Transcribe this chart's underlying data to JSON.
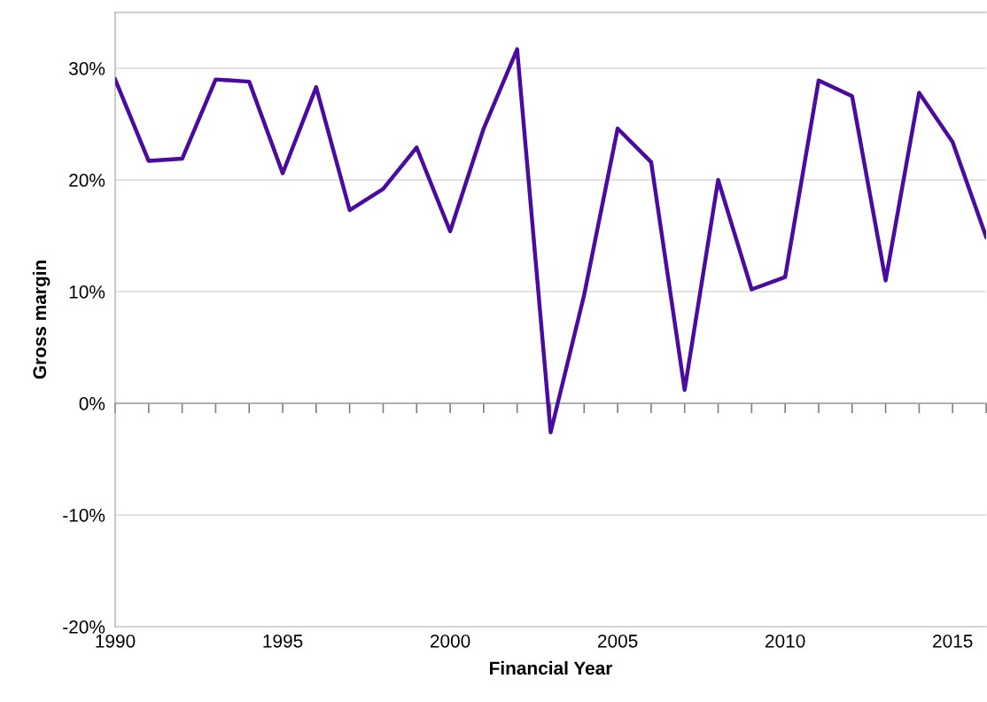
{
  "chart_data": {
    "type": "line",
    "xlabel": "Financial Year",
    "ylabel": "Gross margin",
    "x": [
      1990,
      1991,
      1992,
      1993,
      1994,
      1995,
      1996,
      1997,
      1998,
      1999,
      2000,
      2001,
      2002,
      2003,
      2004,
      2005,
      2006,
      2007,
      2008,
      2009,
      2010,
      2011,
      2012,
      2013,
      2014,
      2015,
      2016
    ],
    "series": [
      {
        "color": "#4b0aa0",
        "values": [
          29.0,
          21.7,
          21.9,
          29.0,
          28.8,
          20.6,
          28.3,
          17.3,
          19.2,
          22.9,
          15.4,
          24.6,
          31.7,
          -2.6,
          9.7,
          24.6,
          21.6,
          1.2,
          20.0,
          10.2,
          11.3,
          28.9,
          27.5,
          11.0,
          27.8,
          23.4,
          14.9
        ]
      }
    ],
    "xlim": [
      1990,
      2016
    ],
    "xticks": [
      1990,
      {
        "value": 1991,
        "label": null
      },
      {
        "value": 1992,
        "label": null
      },
      {
        "value": 1993,
        "label": null
      },
      {
        "value": 1994,
        "label": null
      },
      1995,
      {
        "value": 1996,
        "label": null
      },
      {
        "value": 1997,
        "label": null
      },
      {
        "value": 1998,
        "label": null
      },
      {
        "value": 1999,
        "label": null
      },
      2000,
      {
        "value": 2001,
        "label": null
      },
      {
        "value": 2002,
        "label": null
      },
      {
        "value": 2003,
        "label": null
      },
      {
        "value": 2004,
        "label": null
      },
      2005,
      {
        "value": 2006,
        "label": null
      },
      {
        "value": 2007,
        "label": null
      },
      {
        "value": 2008,
        "label": null
      },
      {
        "value": 2009,
        "label": null
      },
      2010,
      {
        "value": 2011,
        "label": null
      },
      {
        "value": 2012,
        "label": null
      },
      {
        "value": 2013,
        "label": null
      },
      {
        "value": 2014,
        "label": null
      },
      2015,
      {
        "value": 2016,
        "label": null
      }
    ],
    "ylim": [
      -20,
      35
    ],
    "yticks": [
      {
        "value": -20,
        "label": "-20%"
      },
      {
        "value": -10,
        "label": "-10%"
      },
      {
        "value": 0,
        "label": "0%"
      },
      {
        "value": 10,
        "label": "10%"
      },
      {
        "value": 20,
        "label": "20%"
      },
      {
        "value": 30,
        "label": "30%"
      }
    ],
    "grid": "y",
    "legend": false,
    "marker": "none",
    "line_style": "solid"
  }
}
